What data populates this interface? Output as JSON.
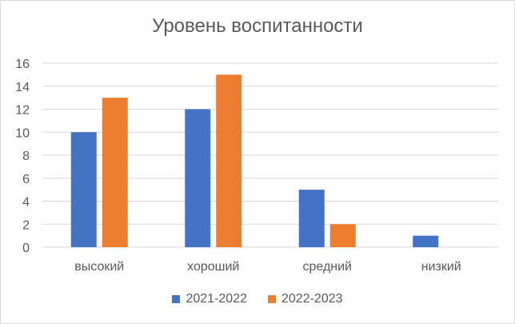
{
  "chart_data": {
    "type": "bar",
    "title": "Уровень воспитанности",
    "categories": [
      "высокий",
      "хороший",
      "средний",
      "низкий"
    ],
    "series": [
      {
        "name": "2021-2022",
        "values": [
          10,
          12,
          5,
          1
        ],
        "color": "#4472C4"
      },
      {
        "name": "2022-2023",
        "values": [
          13,
          15,
          2,
          0
        ],
        "color": "#ED7D31"
      }
    ],
    "ylim": [
      0,
      16
    ],
    "yticks": [
      0,
      2,
      4,
      6,
      8,
      10,
      12,
      14,
      16
    ],
    "grid": true,
    "legend_position": "bottom"
  }
}
